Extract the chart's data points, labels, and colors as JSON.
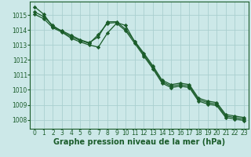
{
  "title": "Graphe pression niveau de la mer (hPa)",
  "background_color": "#cce8e8",
  "grid_color": "#aacfcf",
  "line_color": "#1a5c2a",
  "x_labels": [
    "0",
    "1",
    "2",
    "3",
    "4",
    "5",
    "6",
    "7",
    "8",
    "9",
    "10",
    "11",
    "12",
    "13",
    "14",
    "15",
    "16",
    "17",
    "18",
    "19",
    "20",
    "21",
    "22",
    "23"
  ],
  "ylim": [
    1007.4,
    1015.9
  ],
  "yticks": [
    1008,
    1009,
    1010,
    1011,
    1012,
    1013,
    1014,
    1015
  ],
  "series": [
    [
      1015.2,
      1014.9,
      1014.3,
      1013.9,
      1013.55,
      1013.3,
      1013.1,
      1013.7,
      1014.45,
      1014.5,
      1014.3,
      1013.2,
      1012.35,
      1011.5,
      1010.55,
      1010.25,
      1010.35,
      1010.25,
      1009.35,
      1009.15,
      1009.05,
      1008.25,
      1008.15,
      1008.05
    ],
    [
      1015.55,
      1015.05,
      1014.2,
      1013.95,
      1013.65,
      1013.35,
      1013.15,
      1013.55,
      1014.55,
      1014.55,
      1014.05,
      1013.25,
      1012.45,
      1011.6,
      1010.65,
      1010.35,
      1010.45,
      1010.35,
      1009.45,
      1009.25,
      1009.15,
      1008.35,
      1008.25,
      1008.15
    ],
    [
      1015.05,
      1014.75,
      1014.15,
      1013.85,
      1013.45,
      1013.2,
      1013.0,
      1012.85,
      1013.8,
      1014.45,
      1013.95,
      1013.1,
      1012.25,
      1011.4,
      1010.45,
      1010.15,
      1010.25,
      1010.15,
      1009.25,
      1009.05,
      1008.95,
      1008.15,
      1008.05,
      1007.95
    ]
  ],
  "marker": "D",
  "markersize": 2.2,
  "linewidth": 0.9,
  "title_fontsize": 7,
  "tick_fontsize": 5.5,
  "label_color": "#1a5c2a"
}
